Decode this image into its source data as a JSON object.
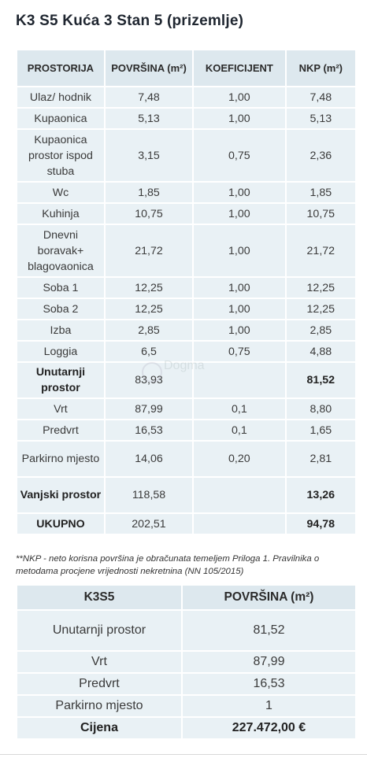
{
  "title": "K3 S5 Kuća 3 Stan 5 (prizemlje)",
  "table1": {
    "headers": [
      "PROSTORIJA",
      "POVRŠINA (m²)",
      "KOEFICIJENT",
      "NKP (m²)"
    ],
    "rows": [
      {
        "name": "Ulaz/ hodnik",
        "area": "7,48",
        "coef": "1,00",
        "nkp": "7,48",
        "bold": false,
        "h": 27
      },
      {
        "name": "Kupaonica",
        "area": "5,13",
        "coef": "1,00",
        "nkp": "5,13",
        "bold": false,
        "h": 27
      },
      {
        "name": "Kupaonica prostor ispod stuba",
        "area": "3,15",
        "coef": "0,75",
        "nkp": "2,36",
        "bold": false,
        "h": 67
      },
      {
        "name": "Wc",
        "area": "1,85",
        "coef": "1,00",
        "nkp": "1,85",
        "bold": false,
        "h": 27
      },
      {
        "name": "Kuhinja",
        "area": "10,75",
        "coef": "1,00",
        "nkp": "10,75",
        "bold": false,
        "h": 27
      },
      {
        "name": "Dnevni boravak+ blagovaonica",
        "area": "21,72",
        "coef": "1,00",
        "nkp": "21,72",
        "bold": false,
        "h": 67
      },
      {
        "name": "Soba 1",
        "area": "12,25",
        "coef": "1,00",
        "nkp": "12,25",
        "bold": false,
        "h": 27
      },
      {
        "name": "Soba 2",
        "area": "12,25",
        "coef": "1,00",
        "nkp": "12,25",
        "bold": false,
        "h": 27
      },
      {
        "name": "Izba",
        "area": "2,85",
        "coef": "1,00",
        "nkp": "2,85",
        "bold": false,
        "h": 27
      },
      {
        "name": "Loggia",
        "area": "6,5",
        "coef": "0,75",
        "nkp": "4,88",
        "bold": false,
        "h": 27
      },
      {
        "name": "Unutarnji prostor",
        "area": "83,93",
        "coef": "",
        "nkp": "81,52",
        "bold": true,
        "h": 46
      },
      {
        "name": "Vrt",
        "area": "87,99",
        "coef": "0,1",
        "nkp": "8,80",
        "bold": false,
        "h": 27
      },
      {
        "name": "Predvrt",
        "area": "16,53",
        "coef": "0,1",
        "nkp": "1,65",
        "bold": false,
        "h": 27
      },
      {
        "name": "Parkirno mjesto",
        "area": "14,06",
        "coef": "0,20",
        "nkp": "2,81",
        "bold": false,
        "h": 46
      },
      {
        "name": "Vanjski prostor",
        "area": "118,58",
        "coef": "",
        "nkp": "13,26",
        "bold": true,
        "h": 46
      },
      {
        "name": "UKUPNO",
        "area": "202,51",
        "coef": "",
        "nkp": "94,78",
        "bold": true,
        "h": 27
      }
    ]
  },
  "note": "**NKP - neto korisna površina je obračunata temeljem Priloga 1. Pravilnika o metodama procjene vrijednosti nekretnina (NN 105/2015)",
  "table2": {
    "headers": [
      "K3S5",
      "POVRŠINA (m²)"
    ],
    "rows": [
      {
        "name": "Unutarnji prostor",
        "value": "81,52",
        "bold": false,
        "h": 52
      },
      {
        "name": "Vrt",
        "value": "87,99",
        "bold": false,
        "h": 28
      },
      {
        "name": "Predvrt",
        "value": "16,53",
        "bold": false,
        "h": 28
      },
      {
        "name": "Parkirno mjesto",
        "value": "1",
        "bold": false,
        "h": 28
      },
      {
        "name": "Cijena",
        "value": "227.472,00 €",
        "bold": true,
        "h": 28
      }
    ]
  },
  "watermark": {
    "text": "Dogma",
    "icon": "logo-icon"
  }
}
